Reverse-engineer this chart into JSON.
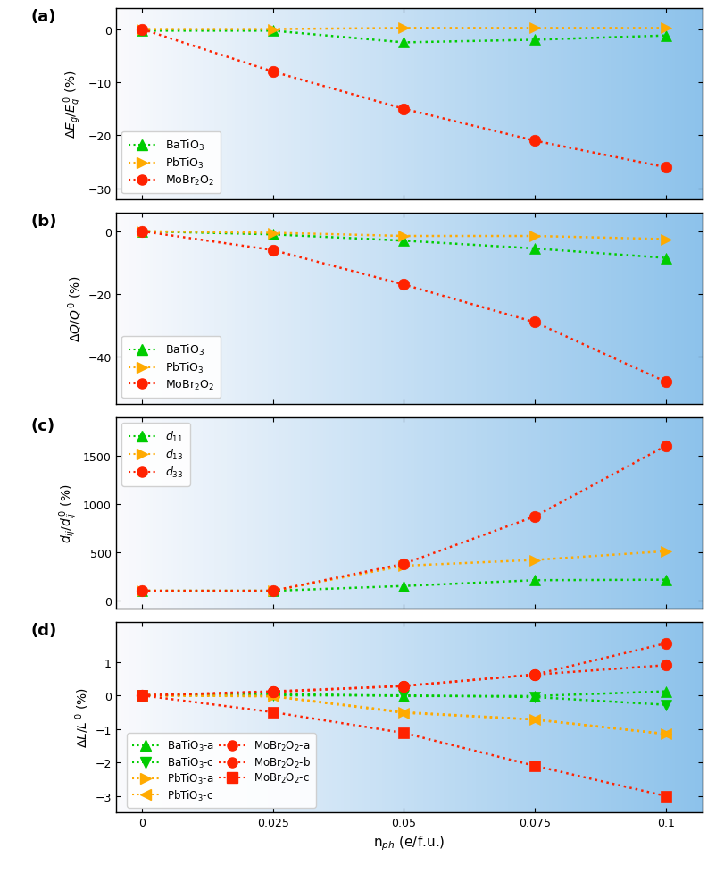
{
  "x": [
    0,
    0.025,
    0.05,
    0.075,
    0.1
  ],
  "panel_a": {
    "BaTiO3": [
      -0.3,
      -0.3,
      -2.5,
      -2.0,
      -1.2
    ],
    "PbTiO3": [
      0.0,
      0.0,
      0.2,
      0.2,
      0.2
    ],
    "MoBr2O2": [
      0.0,
      -8.0,
      -15.0,
      -21.0,
      -26.0
    ],
    "ylim": [
      -32,
      4
    ],
    "yticks": [
      0,
      -10,
      -20,
      -30
    ],
    "ylabel": "$\\Delta E_g/E_g^{\\,0}$ (%)"
  },
  "panel_b": {
    "BaTiO3": [
      0.0,
      -1.0,
      -3.0,
      -5.5,
      -8.5
    ],
    "PbTiO3": [
      0.0,
      -0.5,
      -1.5,
      -1.5,
      -2.5
    ],
    "MoBr2O2": [
      0.0,
      -6.0,
      -17.0,
      -29.0,
      -48.0
    ],
    "ylim": [
      -55,
      6
    ],
    "yticks": [
      0,
      -20,
      -40
    ],
    "ylabel": "$\\Delta Q/Q^{\\,0}$ (%)"
  },
  "panel_c": {
    "d11": [
      100,
      100,
      150,
      210,
      215
    ],
    "d13": [
      100,
      100,
      360,
      420,
      510
    ],
    "d33": [
      100,
      100,
      380,
      870,
      1600
    ],
    "ylim": [
      -80,
      1900
    ],
    "yticks": [
      0,
      500,
      1000,
      1500
    ],
    "ylabel": "$d_{ij}/d_{ij}^{\\,0}$ (%)"
  },
  "panel_d": {
    "BaTiO3_a": [
      0.0,
      0.05,
      -0.02,
      -0.02,
      0.12
    ],
    "BaTiO3_c": [
      0.0,
      0.0,
      0.0,
      -0.05,
      -0.28
    ],
    "PbTiO3_a": [
      0.0,
      -0.02,
      -0.5,
      -0.72,
      -1.15
    ],
    "PbTiO3_c": [
      0.0,
      -0.03,
      -0.52,
      -0.72,
      -1.15
    ],
    "MoBr2O2_a": [
      0.0,
      0.12,
      0.28,
      0.62,
      1.55
    ],
    "MoBr2O2_b": [
      0.0,
      0.1,
      0.28,
      0.62,
      0.9
    ],
    "MoBr2O2_c": [
      0.0,
      -0.5,
      -1.12,
      -2.1,
      -3.0
    ],
    "ylim": [
      -3.5,
      2.2
    ],
    "yticks": [
      1,
      0,
      -1,
      -2,
      -3
    ],
    "ylabel": "$\\Delta L/L^{\\,0}$ (%)"
  },
  "green": "#00cc00",
  "orange": "#ffaa00",
  "red": "#ff2200",
  "xlim": [
    -0.005,
    0.107
  ]
}
